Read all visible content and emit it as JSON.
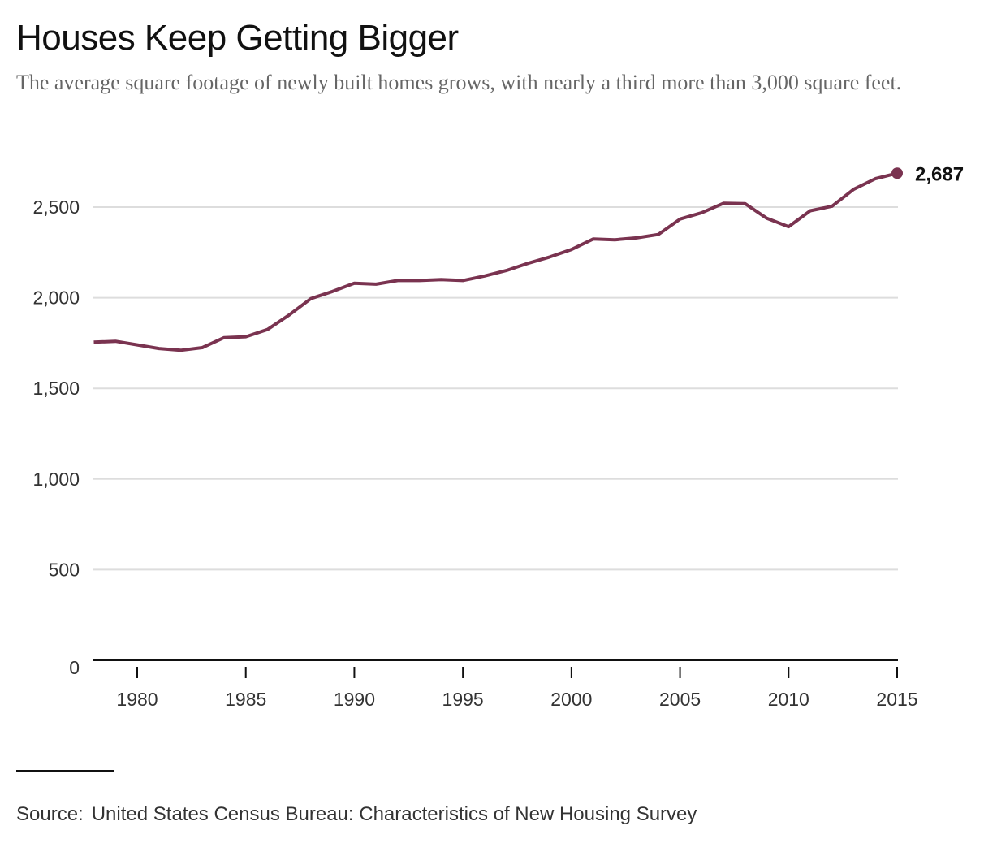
{
  "title": "Houses Keep Getting Bigger",
  "subtitle": "The average square footage of newly built homes grows, with nearly a third more than 3,000 square feet.",
  "source": {
    "prefix": "Source:",
    "text": "United States Census Bureau: Characteristics of New Housing Survey"
  },
  "colors": {
    "line": "#7a3350",
    "grid": "#dddddd",
    "axis": "#111111"
  },
  "chart_data": {
    "type": "line",
    "title": "Houses Keep Getting Bigger",
    "xlabel": "",
    "ylabel": "",
    "xlim": [
      1978,
      2015
    ],
    "ylim": [
      0,
      2700
    ],
    "x_ticks": [
      1980,
      1985,
      1990,
      1995,
      2000,
      2005,
      2010,
      2015
    ],
    "x_tick_labels": [
      "1980",
      "1985",
      "1990",
      "1995",
      "2000",
      "2005",
      "2010",
      "2015"
    ],
    "y_ticks": [
      0,
      500,
      1000,
      1500,
      2000,
      2500
    ],
    "y_tick_labels": [
      "0",
      "500",
      "1,000",
      "1,500",
      "2,000",
      "2,500"
    ],
    "grid": true,
    "legend": "none",
    "series": [
      {
        "x": [
          1978,
          1979,
          1980,
          1981,
          1982,
          1983,
          1984,
          1985,
          1986,
          1987,
          1988,
          1989,
          1990,
          1991,
          1992,
          1993,
          1994,
          1995,
          1996,
          1997,
          1998,
          1999,
          2000,
          2001,
          2002,
          2003,
          2004,
          2005,
          2006,
          2007,
          2008,
          2009,
          2010,
          2011,
          2012,
          2013,
          2014,
          2015
        ],
        "values": [
          1755,
          1760,
          1740,
          1720,
          1710,
          1725,
          1780,
          1785,
          1825,
          1905,
          1995,
          2035,
          2080,
          2075,
          2095,
          2095,
          2100,
          2095,
          2120,
          2150,
          2190,
          2225,
          2266,
          2324,
          2320,
          2330,
          2349,
          2434,
          2469,
          2521,
          2519,
          2438,
          2392,
          2480,
          2505,
          2598,
          2657,
          2687
        ]
      }
    ],
    "annotations": [
      {
        "x": 2015,
        "y": 2687,
        "text": "2,687"
      }
    ]
  }
}
